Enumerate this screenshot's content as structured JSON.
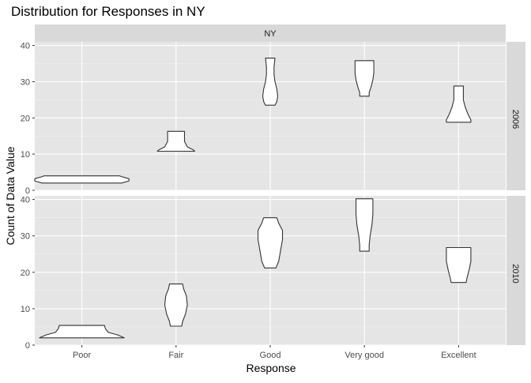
{
  "chart_data": {
    "type": "violin",
    "title": "Distribution for Responses in NY",
    "xlabel": "Response",
    "ylabel": "Count of Data Value",
    "categories": [
      "Poor",
      "Fair",
      "Good",
      "Very good",
      "Excellent"
    ],
    "facet_column": "NY",
    "ylim": [
      0,
      41
    ],
    "yticks": [
      0,
      10,
      20,
      30,
      40
    ],
    "panels": [
      {
        "label": "2006",
        "violins": [
          {
            "category": "Poor",
            "profile": [
              [
                2.0,
                0.42
              ],
              [
                2.6,
                0.5
              ],
              [
                3.2,
                0.5
              ],
              [
                3.8,
                0.42
              ],
              [
                4.0,
                0.4
              ]
            ]
          },
          {
            "category": "Fair",
            "profile": [
              [
                10.8,
                0.2
              ],
              [
                11.2,
                0.18
              ],
              [
                12.0,
                0.12
              ],
              [
                13.5,
                0.09
              ],
              [
                14.5,
                0.09
              ],
              [
                15.5,
                0.09
              ],
              [
                16.3,
                0.09
              ]
            ]
          },
          {
            "category": "Good",
            "profile": [
              [
                23.5,
                0.05
              ],
              [
                24.5,
                0.07
              ],
              [
                26.0,
                0.08
              ],
              [
                28.0,
                0.07
              ],
              [
                30.0,
                0.05
              ],
              [
                32.0,
                0.04
              ],
              [
                34.0,
                0.04
              ],
              [
                36.5,
                0.05
              ]
            ]
          },
          {
            "category": "Very good",
            "profile": [
              [
                26.0,
                0.05
              ],
              [
                27.0,
                0.05
              ],
              [
                28.5,
                0.07
              ],
              [
                30.5,
                0.09
              ],
              [
                32.5,
                0.1
              ],
              [
                34.5,
                0.1
              ],
              [
                35.8,
                0.1
              ]
            ]
          },
          {
            "category": "Excellent",
            "profile": [
              [
                18.8,
                0.13
              ],
              [
                19.5,
                0.13
              ],
              [
                21.0,
                0.1
              ],
              [
                23.0,
                0.07
              ],
              [
                25.0,
                0.05
              ],
              [
                27.0,
                0.05
              ],
              [
                28.8,
                0.05
              ]
            ]
          }
        ]
      },
      {
        "label": "2010",
        "violins": [
          {
            "category": "Poor",
            "profile": [
              [
                2.0,
                0.45
              ],
              [
                2.8,
                0.38
              ],
              [
                3.5,
                0.28
              ],
              [
                4.5,
                0.25
              ],
              [
                5.4,
                0.24
              ]
            ]
          },
          {
            "category": "Fair",
            "profile": [
              [
                5.2,
                0.06
              ],
              [
                6.5,
                0.07
              ],
              [
                8.5,
                0.1
              ],
              [
                11.0,
                0.12
              ],
              [
                13.5,
                0.11
              ],
              [
                15.5,
                0.08
              ],
              [
                16.8,
                0.07
              ]
            ]
          },
          {
            "category": "Good",
            "profile": [
              [
                21.2,
                0.06
              ],
              [
                23.0,
                0.09
              ],
              [
                26.0,
                0.11
              ],
              [
                29.0,
                0.13
              ],
              [
                31.5,
                0.13
              ],
              [
                33.5,
                0.09
              ],
              [
                35.0,
                0.07
              ]
            ]
          },
          {
            "category": "Very good",
            "profile": [
              [
                25.8,
                0.05
              ],
              [
                27.5,
                0.05
              ],
              [
                30.0,
                0.06
              ],
              [
                33.0,
                0.08
              ],
              [
                36.0,
                0.09
              ],
              [
                38.5,
                0.09
              ],
              [
                40.2,
                0.09
              ]
            ]
          },
          {
            "category": "Excellent",
            "profile": [
              [
                17.2,
                0.08
              ],
              [
                18.5,
                0.09
              ],
              [
                20.5,
                0.11
              ],
              [
                23.0,
                0.13
              ],
              [
                25.0,
                0.13
              ],
              [
                26.8,
                0.13
              ]
            ]
          }
        ]
      }
    ],
    "colors": {
      "panel_background": "#e5e5e5",
      "grid_major": "#ffffff",
      "strip_background": "#d9d9d9",
      "violin_fill": "#ffffff",
      "violin_outline": "#333333"
    }
  }
}
